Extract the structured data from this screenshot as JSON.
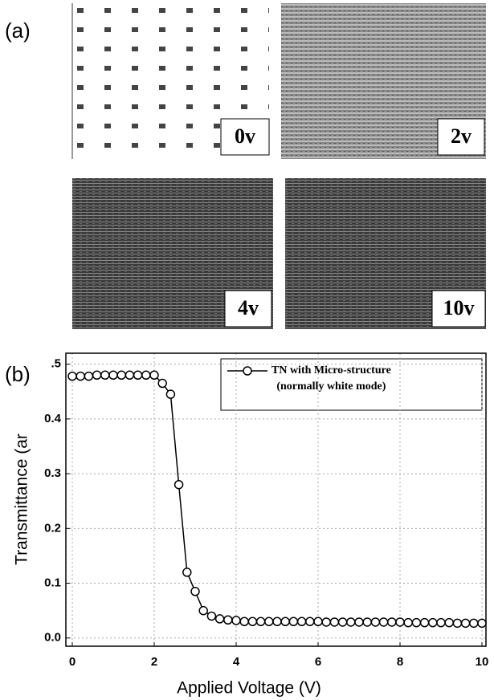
{
  "panel_a": {
    "label": "(a)",
    "images": [
      {
        "label": "0v"
      },
      {
        "label": "2v"
      },
      {
        "label": "4v"
      },
      {
        "label": "10v"
      }
    ]
  },
  "chart_data": {
    "type": "line",
    "panel_label": "(b)",
    "x_label": "Applied Voltage (V)",
    "y_label": "Transmittance (ar",
    "x": [
      0,
      0.2,
      0.4,
      0.6,
      0.8,
      1,
      1.2,
      1.4,
      1.6,
      1.8,
      2,
      2.2,
      2.4,
      2.6,
      2.8,
      3,
      3.2,
      3.4,
      3.6,
      3.8,
      4,
      4.2,
      4.4,
      4.6,
      4.8,
      5,
      5.2,
      5.4,
      5.6,
      5.8,
      6,
      6.2,
      6.4,
      6.6,
      6.8,
      7,
      7.2,
      7.4,
      7.6,
      7.8,
      8,
      8.2,
      8.4,
      8.6,
      8.8,
      9,
      9.2,
      9.4,
      9.6,
      9.8,
      10
    ],
    "series": [
      {
        "name": "TN with Micro-structure\n(normally white mode)",
        "color": "#000000",
        "values": [
          0.478,
          0.478,
          0.478,
          0.48,
          0.48,
          0.48,
          0.48,
          0.48,
          0.48,
          0.48,
          0.48,
          0.465,
          0.445,
          0.28,
          0.12,
          0.085,
          0.05,
          0.04,
          0.035,
          0.033,
          0.032,
          0.03,
          0.03,
          0.03,
          0.03,
          0.03,
          0.03,
          0.03,
          0.03,
          0.03,
          0.03,
          0.029,
          0.029,
          0.029,
          0.029,
          0.029,
          0.029,
          0.029,
          0.029,
          0.029,
          0.029,
          0.028,
          0.028,
          0.028,
          0.028,
          0.028,
          0.028,
          0.027,
          0.027,
          0.027,
          0.027
        ]
      }
    ],
    "xlim": [
      0,
      10
    ],
    "ylim": [
      -0.015,
      0.52
    ],
    "xticks": [
      0,
      2,
      4,
      6,
      8,
      10
    ],
    "yticks": [
      {
        "value": 0,
        "label": "0.0"
      },
      0.1,
      0.2,
      0.3,
      0.4,
      {
        "value": 0.5,
        "label": ".5"
      }
    ],
    "grid": true
  }
}
